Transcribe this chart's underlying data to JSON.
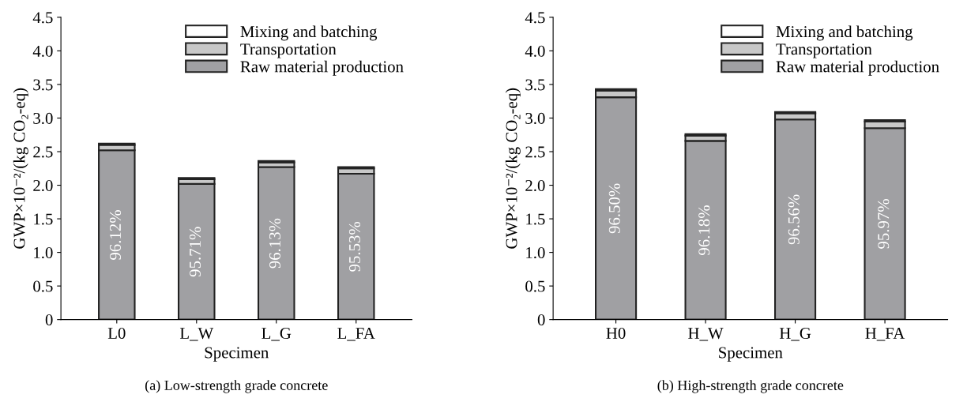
{
  "chart_data": [
    {
      "type": "bar",
      "stacked": true,
      "categories": [
        "L0",
        "L_W",
        "L_G",
        "L_FA"
      ],
      "xlabel": "Specimen",
      "ylabel": "GWP×10⁻²/(kg CO₂-eq)",
      "ylim": [
        0,
        4.5
      ],
      "yticks": [
        0,
        0.5,
        {
          "value": 1,
          "label": "1.0"
        },
        1.5,
        {
          "value": 2,
          "label": "2.0"
        },
        2.5,
        {
          "value": 3,
          "label": "3.0"
        },
        3.5,
        {
          "value": 4,
          "label": "4.0"
        },
        4.5
      ],
      "legend": "top right",
      "annotations": [
        "(a) Low-strength grade concrete",
        "96.12%",
        "95.71%",
        "96.13%",
        "95.53%"
      ],
      "series": [
        {
          "name": "Raw material production",
          "color": "#a0a0a3",
          "values": [
            2.52,
            2.02,
            2.27,
            2.17
          ]
        },
        {
          "name": "Transportation",
          "color": "#c8c8c8",
          "values": [
            0.08,
            0.07,
            0.07,
            0.08
          ]
        },
        {
          "name": "Mixing and batching",
          "color": "#ffffff",
          "values": [
            0.02,
            0.02,
            0.02,
            0.02
          ]
        }
      ]
    },
    {
      "type": "bar",
      "stacked": true,
      "categories": [
        "H0",
        "H_W",
        "H_G",
        "H_FA"
      ],
      "xlabel": "Specimen",
      "ylabel": "GWP×10⁻²/(kg CO₂-eq)",
      "ylim": [
        0,
        4.5
      ],
      "yticks": [
        0,
        0.5,
        {
          "value": 1,
          "label": "1.0"
        },
        1.5,
        {
          "value": 2,
          "label": "2.0"
        },
        2.5,
        {
          "value": 3,
          "label": "3.0"
        },
        3.5,
        {
          "value": 4,
          "label": "4.0"
        },
        4.5
      ],
      "legend": "top right",
      "annotations": [
        "(b) High-strength grade concrete",
        "96.50%",
        "96.18%",
        "96.56%",
        "95.97%"
      ],
      "series": [
        {
          "name": "Raw material production",
          "color": "#a0a0a3",
          "values": [
            3.31,
            2.66,
            2.98,
            2.85
          ]
        },
        {
          "name": "Transportation",
          "color": "#c8c8c8",
          "values": [
            0.1,
            0.08,
            0.09,
            0.1
          ]
        },
        {
          "name": "Mixing and batching",
          "color": "#ffffff",
          "values": [
            0.02,
            0.02,
            0.02,
            0.02
          ]
        }
      ]
    }
  ]
}
